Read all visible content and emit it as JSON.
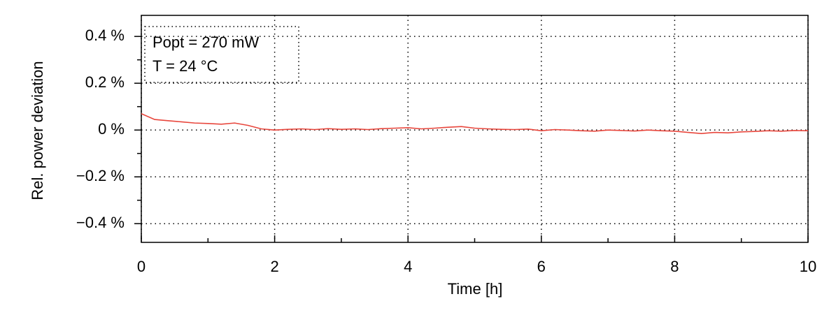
{
  "chart_data": {
    "type": "line",
    "y_label": "Rel. power deviation",
    "x_label": "Time [h]",
    "annotations": [
      "Popt = 270 mW",
      "T = 24 °C"
    ],
    "x": [
      0,
      0.2,
      0.4,
      0.6,
      0.8,
      1,
      1.2,
      1.4,
      1.6,
      1.8,
      2,
      2.2,
      2.4,
      2.6,
      2.8,
      3,
      3.2,
      3.4,
      3.6,
      3.8,
      4,
      4.2,
      4.4,
      4.6,
      4.8,
      5,
      5.2,
      5.4,
      5.6,
      5.8,
      6,
      6.2,
      6.4,
      6.6,
      6.8,
      7,
      7.2,
      7.4,
      7.6,
      7.8,
      8,
      8.2,
      8.4,
      8.6,
      8.8,
      9,
      9.2,
      9.4,
      9.6,
      9.8,
      10
    ],
    "values": [
      0.07,
      0.045,
      0.04,
      0.035,
      0.03,
      0.028,
      0.025,
      0.03,
      0.02,
      0.005,
      0,
      0.003,
      0.005,
      0.002,
      0.006,
      0.003,
      0.005,
      0.002,
      0.006,
      0.008,
      0.01,
      0.005,
      0.008,
      0.012,
      0.015,
      0.008,
      0.005,
      0.003,
      0.002,
      0.004,
      -0.003,
      0.002,
      0,
      -0.003,
      -0.005,
      0,
      -0.002,
      -0.004,
      0,
      -0.003,
      -0.005,
      -0.01,
      -0.015,
      -0.01,
      -0.012,
      -0.008,
      -0.006,
      -0.003,
      -0.005,
      -0.002,
      -0.003
    ],
    "color": "#e8463c",
    "xlim": [
      0,
      10
    ],
    "xticks": [
      0,
      2,
      4,
      6,
      8,
      10
    ],
    "xminorticks": [
      1,
      3,
      5,
      7,
      9
    ],
    "ylim": [
      -0.48,
      0.49
    ],
    "yticks": [
      {
        "value": -0.4,
        "label": "−0.4 %"
      },
      {
        "value": -0.2,
        "label": "−0.2 %"
      },
      {
        "value": 0,
        "label": "0 %"
      },
      {
        "value": 0.2,
        "label": "0.2 %"
      },
      {
        "value": 0.4,
        "label": "0.4 %"
      }
    ],
    "yminorticks": [
      -0.3,
      -0.1,
      0.1,
      0.3
    ],
    "grid": true
  }
}
